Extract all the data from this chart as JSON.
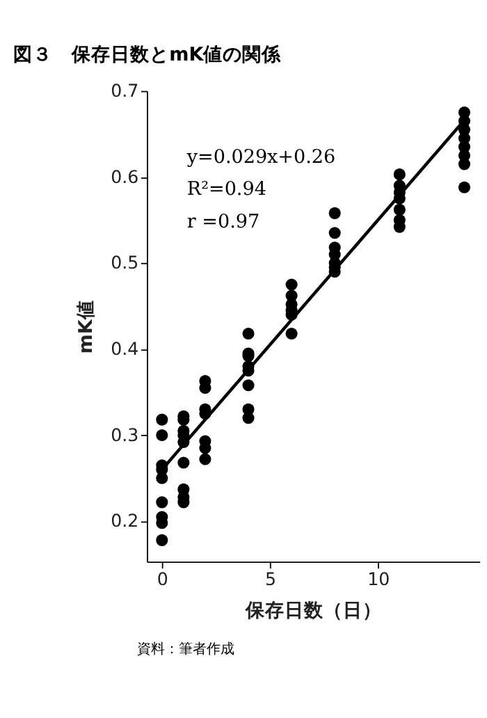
{
  "chart_data": {
    "type": "scatter",
    "title": "図３　保存日数とmK値の関係",
    "xlabel": "保存日数（日）",
    "ylabel": "mK値",
    "annotations": [
      "y=0.029x+0.26",
      "R²=0.94",
      "r =0.97",
      "資料：筆者作成"
    ],
    "xlim": [
      -0.7,
      14.7
    ],
    "xticks": [
      0,
      5,
      10
    ],
    "ylim": [
      0.153,
      0.7
    ],
    "yticks": [
      0.2,
      0.3,
      0.4,
      0.5,
      0.6,
      0.7
    ],
    "grid": false,
    "series": [
      {
        "type": "scatter",
        "color": "#000000",
        "marker": "circle",
        "x": [
          0,
          0,
          0,
          0,
          0,
          0,
          0,
          0,
          0,
          1,
          1,
          1,
          1,
          1,
          1,
          1,
          1,
          1,
          2,
          2,
          2,
          2,
          2,
          2,
          2,
          4,
          4,
          4,
          4,
          4,
          4,
          4,
          4,
          6,
          6,
          6,
          6,
          6,
          6,
          8,
          8,
          8,
          8,
          8,
          8,
          8,
          11,
          11,
          11,
          11,
          11,
          11,
          11,
          14,
          14,
          14,
          14,
          14,
          14,
          14,
          14
        ],
        "values": [
          0.318,
          0.3,
          0.265,
          0.26,
          0.25,
          0.222,
          0.205,
          0.198,
          0.178,
          0.322,
          0.318,
          0.305,
          0.3,
          0.292,
          0.268,
          0.237,
          0.228,
          0.222,
          0.363,
          0.355,
          0.33,
          0.325,
          0.293,
          0.285,
          0.272,
          0.418,
          0.395,
          0.392,
          0.38,
          0.375,
          0.358,
          0.33,
          0.32,
          0.475,
          0.462,
          0.452,
          0.445,
          0.44,
          0.418,
          0.558,
          0.535,
          0.518,
          0.51,
          0.5,
          0.495,
          0.49,
          0.603,
          0.59,
          0.582,
          0.575,
          0.562,
          0.55,
          0.542,
          0.675,
          0.665,
          0.655,
          0.645,
          0.635,
          0.625,
          0.615,
          0.588
        ]
      },
      {
        "type": "line",
        "color": "#000000",
        "line_style": "solid",
        "x": [
          0,
          14
        ],
        "values": [
          0.26,
          0.666
        ]
      }
    ]
  }
}
